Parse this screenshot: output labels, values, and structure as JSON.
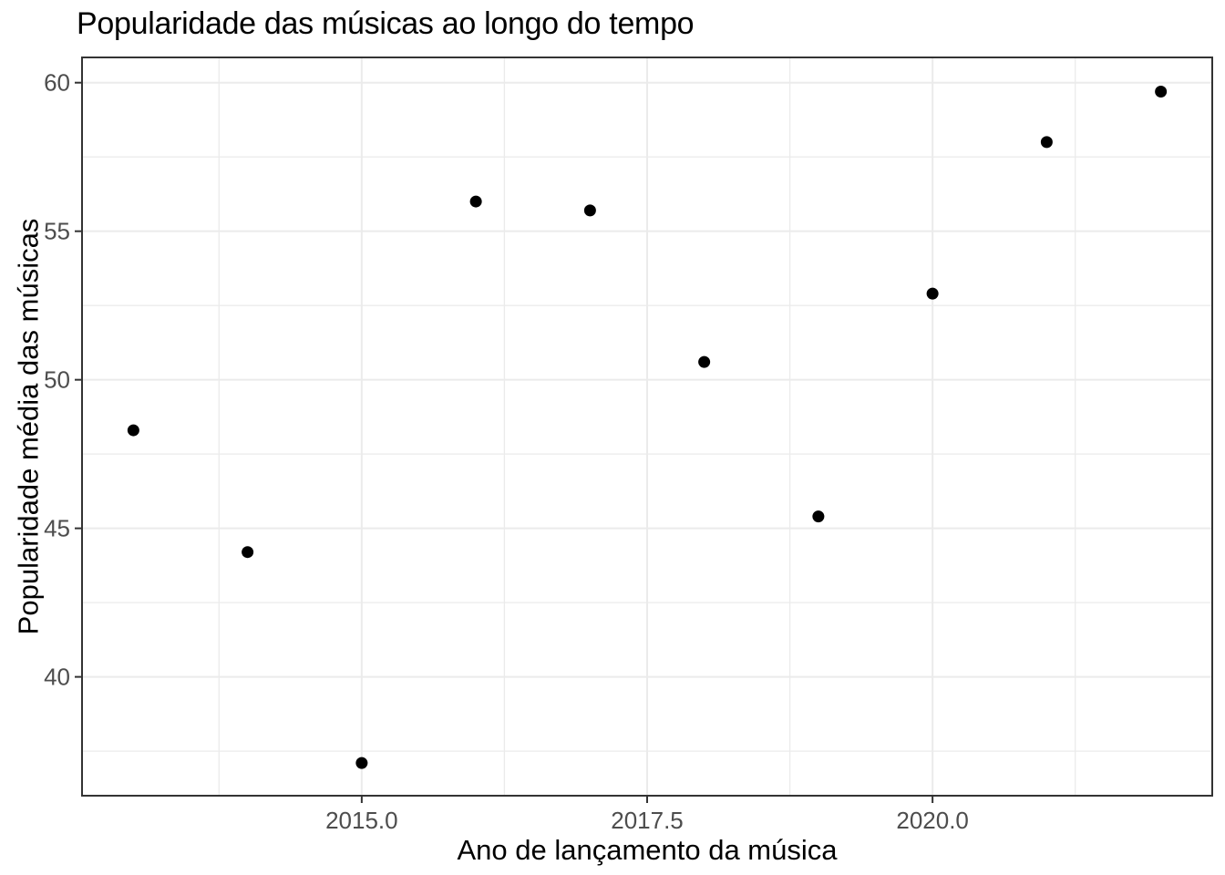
{
  "chart_data": {
    "type": "scatter",
    "title": "Popularidade das músicas ao longo do tempo",
    "xlabel": "Ano de lançamento da música",
    "ylabel": "Popularidade média das músicas",
    "x": [
      2013,
      2014,
      2015,
      2016,
      2017,
      2018,
      2019,
      2020,
      2021,
      2022
    ],
    "y": [
      48.3,
      44.2,
      37.1,
      56.0,
      55.7,
      50.6,
      45.4,
      52.9,
      58.0,
      59.7
    ],
    "xlim": [
      2012.55,
      2022.45
    ],
    "ylim": [
      36.0,
      60.85
    ],
    "x_ticks": [
      2015.0,
      2017.5,
      2020.0
    ],
    "x_tick_labels": [
      "2015.0",
      "2017.5",
      "2020.0"
    ],
    "y_ticks": [
      40,
      45,
      50,
      55,
      60
    ],
    "y_tick_labels": [
      "40",
      "45",
      "50",
      "55",
      "60"
    ],
    "x_minor_ticks": [
      2013.75,
      2016.25,
      2018.75,
      2021.25
    ],
    "y_minor_ticks": [
      37.5,
      42.5,
      47.5,
      52.5,
      57.5
    ],
    "grid": true,
    "legend": "none",
    "point_color": "#000000",
    "grid_major_color": "#ebebeb",
    "grid_minor_color": "#ebebeb",
    "panel_border_color": "#333333",
    "tick_label_color": "#4d4d4d",
    "background": "#ffffff"
  }
}
